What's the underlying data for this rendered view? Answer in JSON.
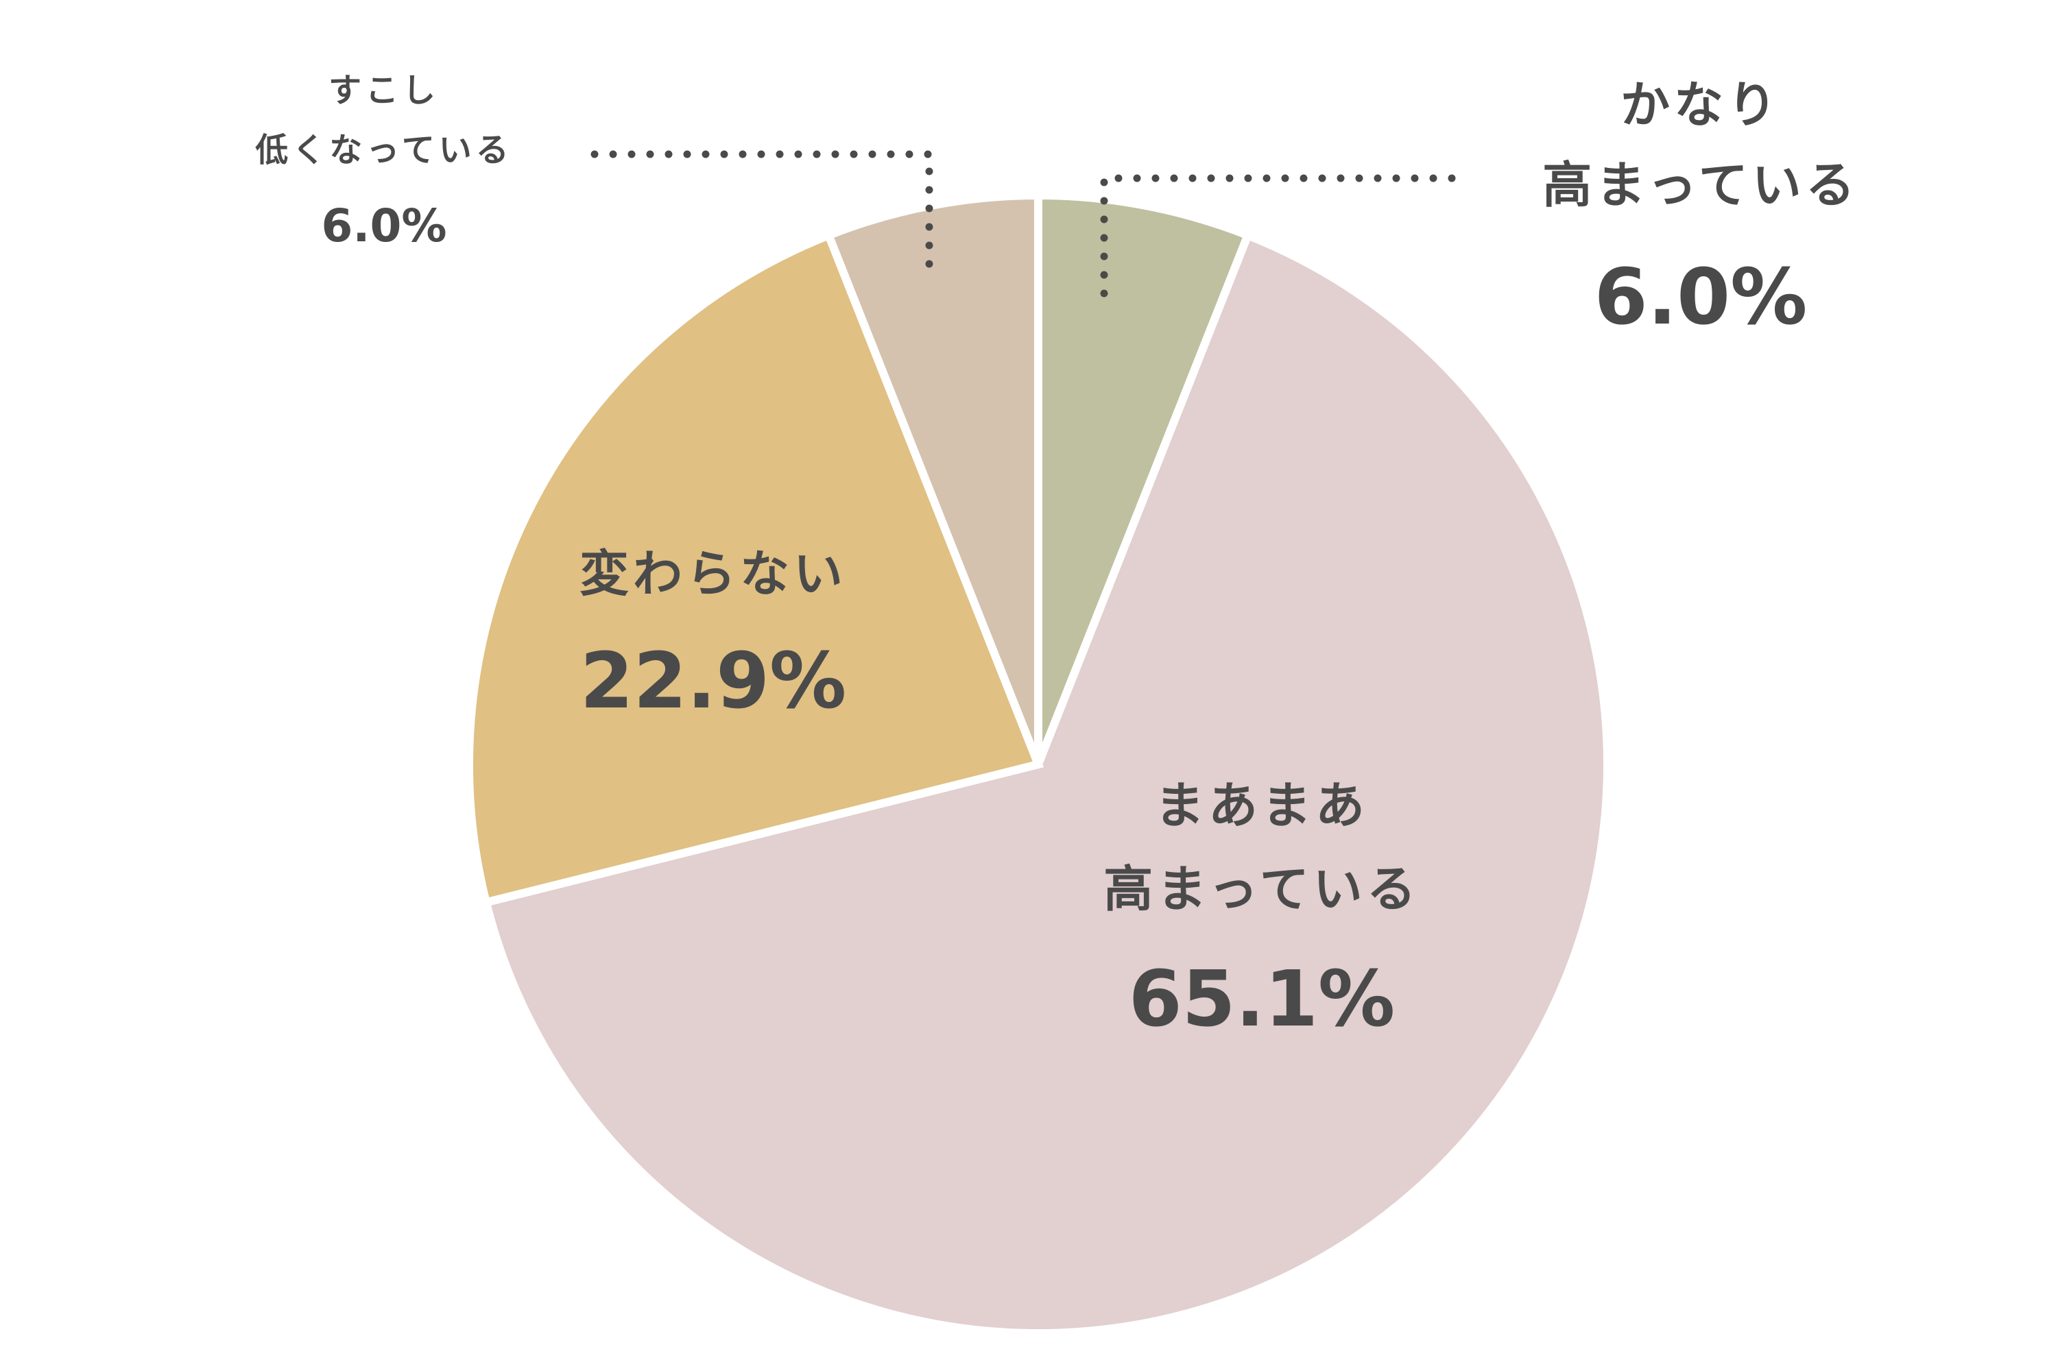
{
  "chart_data": {
    "type": "pie",
    "title": "",
    "slices": [
      {
        "label_lines": [
          "かなり",
          "高まっている"
        ],
        "value": 6.0,
        "value_text": "6.0%",
        "color": "#bfc09f"
      },
      {
        "label_lines": [
          "まあまあ",
          "高まっている"
        ],
        "value": 65.1,
        "value_text": "65.1%",
        "color": "#e2cfd0"
      },
      {
        "label_lines": [
          "変わらない"
        ],
        "value": 22.9,
        "value_text": "22.9%",
        "color": "#e0c083"
      },
      {
        "label_lines": [
          "すこし",
          "低くなっている"
        ],
        "value": 6.0,
        "value_text": "6.0%",
        "color": "#d4c2ae"
      }
    ],
    "start": "12 o'clock",
    "direction": "clockwise",
    "legend": "none"
  }
}
